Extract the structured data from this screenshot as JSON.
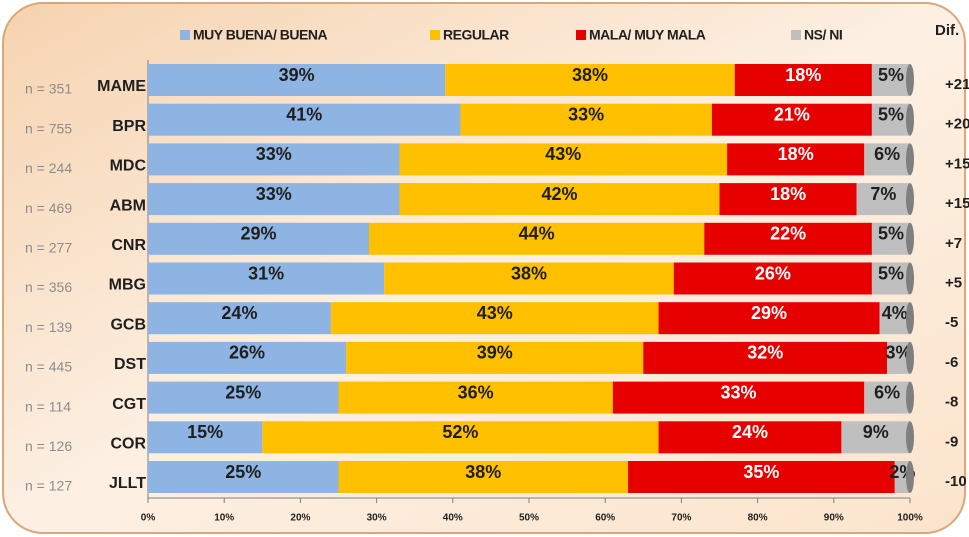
{
  "chart_data": {
    "type": "stacked_bar_horizontal",
    "categories": [
      "MAME",
      "BPR",
      "MDC",
      "ABM",
      "CNR",
      "MBG",
      "GCB",
      "DST",
      "CGT",
      "COR",
      "JLLT"
    ],
    "sample_labels": [
      "n = 351",
      "n = 755",
      "n = 244",
      "n = 469",
      "n = 277",
      "n = 356",
      "n = 139",
      "n = 445",
      "n = 114",
      "n = 126",
      "n = 127"
    ],
    "difference_header": "Dif.",
    "difference_labels": [
      "+21",
      "+20",
      "+15",
      "+15",
      "+7",
      "+5",
      "-5",
      "-6",
      "-8",
      "-9",
      "-10"
    ],
    "series": [
      {
        "name": "MUY BUENA/ BUENA",
        "color": "#8db4e2",
        "label_color": "#1f1f1f",
        "values": [
          39,
          41,
          33,
          33,
          29,
          31,
          24,
          26,
          25,
          15,
          25
        ],
        "value_labels": [
          "39%",
          "41%",
          "33%",
          "33%",
          "29%",
          "31%",
          "24%",
          "26%",
          "25%",
          "15%",
          "25%"
        ]
      },
      {
        "name": "REGULAR",
        "color": "#ffc000",
        "label_color": "#1f1f1f",
        "values": [
          38,
          33,
          43,
          42,
          44,
          38,
          43,
          39,
          36,
          52,
          38
        ],
        "value_labels": [
          "38%",
          "33%",
          "43%",
          "42%",
          "44%",
          "38%",
          "43%",
          "39%",
          "36%",
          "52%",
          "38%"
        ]
      },
      {
        "name": "MALA/ MUY MALA",
        "color": "#e60000",
        "label_color": "#ffffff",
        "values": [
          18,
          21,
          18,
          18,
          22,
          26,
          29,
          32,
          33,
          24,
          35
        ],
        "value_labels": [
          "18%",
          "21%",
          "18%",
          "18%",
          "22%",
          "26%",
          "29%",
          "32%",
          "33%",
          "24%",
          "35%"
        ]
      },
      {
        "name": "NS/ NI",
        "color": "#bfbfbf",
        "label_color": "#1f1f1f",
        "values": [
          5,
          5,
          6,
          7,
          5,
          5,
          4,
          3,
          6,
          9,
          2
        ],
        "value_labels": [
          "5%",
          "5%",
          "6%",
          "7%",
          "5%",
          "5%",
          "4%",
          "3%",
          "6%",
          "9%",
          "2%"
        ]
      }
    ],
    "xlim": [
      0,
      100
    ],
    "xticks": [
      {
        "value": 0,
        "label": "0%"
      },
      {
        "value": 10,
        "label": "10%"
      },
      {
        "value": 20,
        "label": "20%"
      },
      {
        "value": 30,
        "label": "30%"
      },
      {
        "value": 40,
        "label": "40%"
      },
      {
        "value": 50,
        "label": "50%"
      },
      {
        "value": 60,
        "label": "60%"
      },
      {
        "value": 70,
        "label": "70%"
      },
      {
        "value": 80,
        "label": "80%"
      },
      {
        "value": 90,
        "label": "90%"
      },
      {
        "value": 100,
        "label": "100%"
      }
    ]
  }
}
